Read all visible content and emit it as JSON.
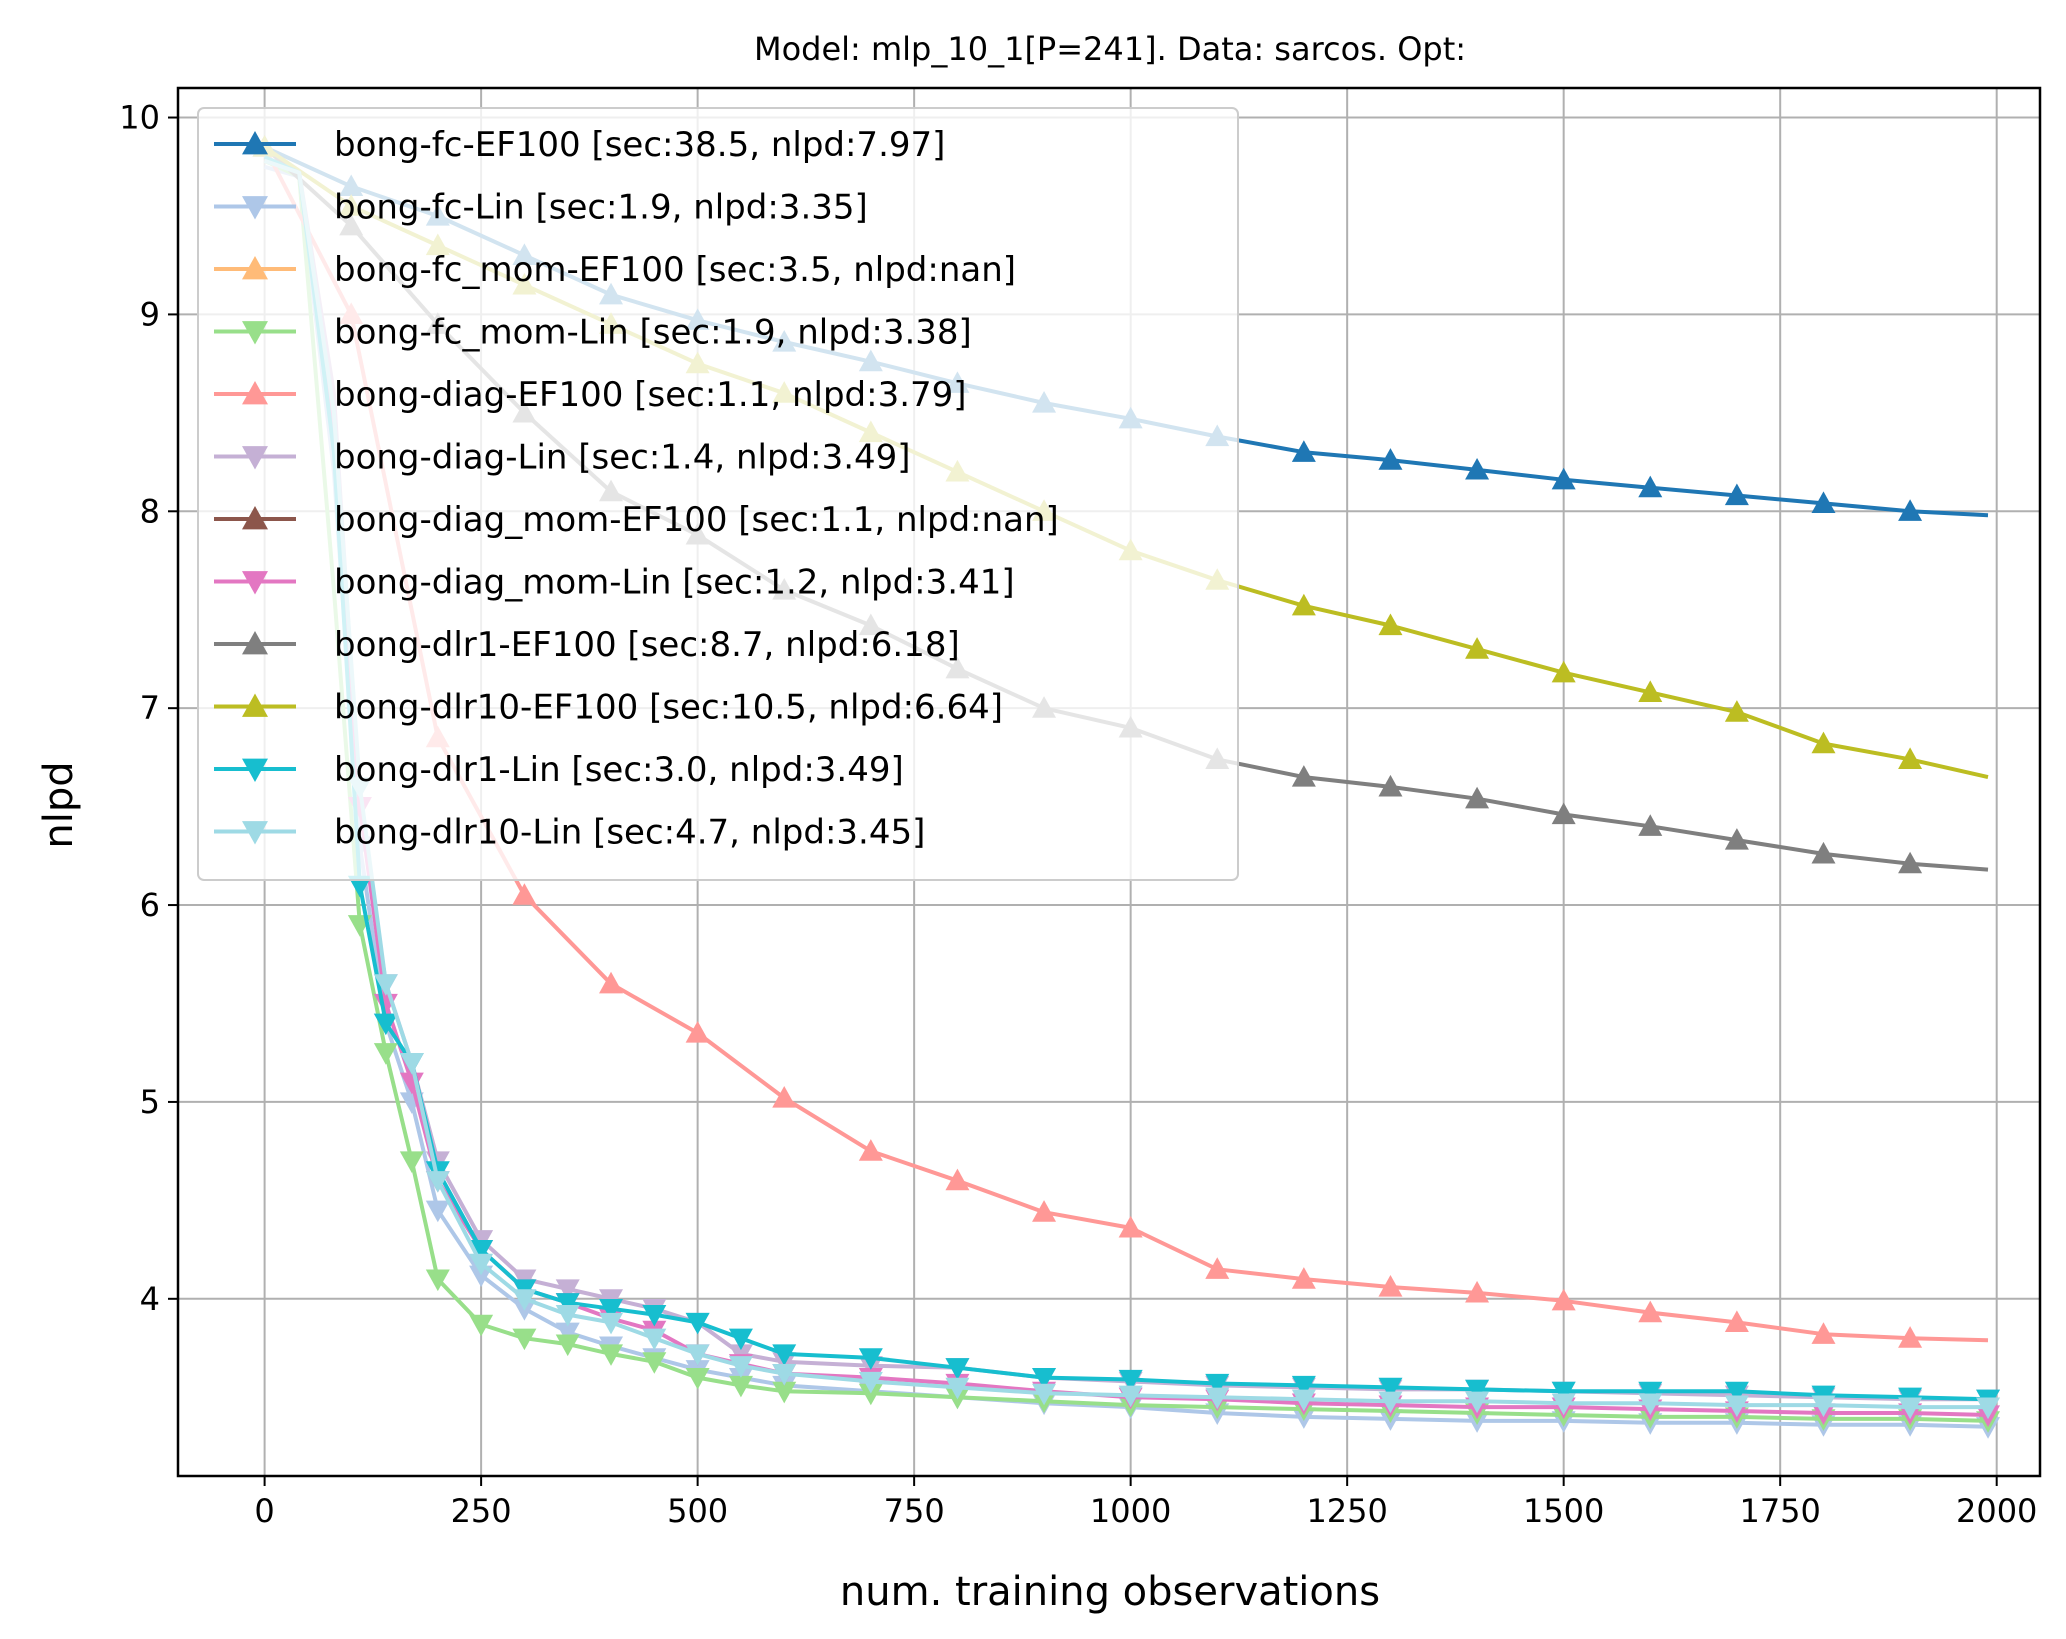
{
  "chart_data": {
    "type": "line",
    "title": "Model: mlp_10_1[P=241]. Data: sarcos. Opt:",
    "xlabel": "num. training observations",
    "ylabel": "nlpd",
    "xlim": [
      -100,
      2050
    ],
    "ylim": [
      3.1,
      10.15
    ],
    "xticks": [
      0,
      250,
      500,
      750,
      1000,
      1250,
      1500,
      1750,
      2000
    ],
    "yticks": [
      4,
      5,
      6,
      7,
      8,
      9,
      10
    ],
    "grid": true,
    "legend_position": "upper-left",
    "series": [
      {
        "name": "bong-fc-EF100 [sec:38.5, nlpd:7.97]",
        "color": "#1f77b4",
        "marker": "triangle-up",
        "x": [
          0,
          100,
          200,
          300,
          400,
          500,
          600,
          700,
          800,
          900,
          1000,
          1100,
          1200,
          1300,
          1400,
          1500,
          1600,
          1700,
          1800,
          1900,
          1990
        ],
        "y": [
          9.85,
          9.65,
          9.5,
          9.3,
          9.1,
          8.97,
          8.86,
          8.76,
          8.65,
          8.55,
          8.47,
          8.38,
          8.3,
          8.26,
          8.21,
          8.16,
          8.12,
          8.08,
          8.04,
          8.0,
          7.98
        ]
      },
      {
        "name": "bong-fc-Lin [sec:1.9, nlpd:3.35]",
        "color": "#aec7e8",
        "marker": "triangle-down",
        "x": [
          0,
          40,
          80,
          110,
          140,
          170,
          200,
          250,
          300,
          350,
          400,
          450,
          500,
          550,
          600,
          700,
          800,
          900,
          1000,
          1100,
          1200,
          1300,
          1400,
          1500,
          1600,
          1700,
          1800,
          1900,
          1990
        ],
        "y": [
          9.75,
          9.7,
          8.2,
          6.3,
          5.4,
          5.0,
          4.45,
          4.12,
          3.95,
          3.83,
          3.76,
          3.7,
          3.64,
          3.6,
          3.56,
          3.53,
          3.5,
          3.47,
          3.45,
          3.42,
          3.4,
          3.39,
          3.38,
          3.38,
          3.37,
          3.37,
          3.36,
          3.36,
          3.35
        ]
      },
      {
        "name": "bong-fc_mom-EF100 [sec:3.5, nlpd:nan]",
        "color": "#ffbb78",
        "marker": "triangle-up",
        "x": [],
        "y": []
      },
      {
        "name": "bong-fc_mom-Lin [sec:1.9, nlpd:3.38]",
        "color": "#98df8a",
        "marker": "triangle-down",
        "x": [
          0,
          40,
          80,
          110,
          140,
          170,
          200,
          250,
          300,
          350,
          400,
          450,
          500,
          550,
          600,
          700,
          800,
          900,
          1000,
          1100,
          1200,
          1300,
          1400,
          1500,
          1600,
          1700,
          1800,
          1900,
          1990
        ],
        "y": [
          9.78,
          9.7,
          7.6,
          5.9,
          5.25,
          4.7,
          4.1,
          3.87,
          3.8,
          3.77,
          3.72,
          3.68,
          3.6,
          3.56,
          3.53,
          3.52,
          3.5,
          3.48,
          3.46,
          3.45,
          3.44,
          3.43,
          3.42,
          3.41,
          3.4,
          3.4,
          3.39,
          3.39,
          3.38
        ]
      },
      {
        "name": "bong-diag-EF100 [sec:1.1, nlpd:3.79]",
        "color": "#ff9896",
        "marker": "triangle-up",
        "x": [
          0,
          100,
          200,
          300,
          400,
          500,
          600,
          700,
          800,
          900,
          1000,
          1100,
          1200,
          1300,
          1400,
          1500,
          1600,
          1700,
          1800,
          1900,
          1990
        ],
        "y": [
          9.85,
          9.0,
          6.85,
          6.05,
          5.6,
          5.35,
          5.02,
          4.75,
          4.6,
          4.44,
          4.36,
          4.15,
          4.1,
          4.06,
          4.03,
          3.99,
          3.93,
          3.88,
          3.82,
          3.8,
          3.79
        ]
      },
      {
        "name": "bong-diag-Lin [sec:1.4, nlpd:3.49]",
        "color": "#c5b0d5",
        "marker": "triangle-down",
        "x": [
          0,
          40,
          80,
          110,
          140,
          170,
          200,
          250,
          300,
          350,
          400,
          450,
          500,
          550,
          600,
          700,
          800,
          900,
          1000,
          1100,
          1200,
          1300,
          1400,
          1500,
          1600,
          1700,
          1800,
          1900,
          1990
        ],
        "y": [
          9.8,
          9.72,
          8.6,
          6.5,
          5.6,
          5.2,
          4.7,
          4.3,
          4.1,
          4.05,
          4.0,
          3.95,
          3.88,
          3.72,
          3.68,
          3.66,
          3.65,
          3.6,
          3.58,
          3.56,
          3.55,
          3.54,
          3.54,
          3.53,
          3.52,
          3.51,
          3.5,
          3.49,
          3.49
        ]
      },
      {
        "name": "bong-diag_mom-EF100 [sec:1.1, nlpd:nan]",
        "color": "#8c564b",
        "marker": "triangle-up",
        "x": [],
        "y": []
      },
      {
        "name": "bong-diag_mom-Lin [sec:1.2, nlpd:3.41]",
        "color": "#e377c2",
        "marker": "triangle-down",
        "x": [
          0,
          40,
          80,
          110,
          140,
          170,
          200,
          250,
          300,
          350,
          400,
          450,
          500,
          550,
          600,
          700,
          800,
          900,
          1000,
          1100,
          1200,
          1300,
          1400,
          1500,
          1600,
          1700,
          1800,
          1900,
          1990
        ],
        "y": [
          9.8,
          9.72,
          8.4,
          6.5,
          5.5,
          5.1,
          4.6,
          4.25,
          4.05,
          3.98,
          3.9,
          3.84,
          3.72,
          3.67,
          3.62,
          3.6,
          3.57,
          3.53,
          3.5,
          3.49,
          3.47,
          3.46,
          3.45,
          3.45,
          3.44,
          3.43,
          3.42,
          3.42,
          3.41
        ]
      },
      {
        "name": "bong-dlr1-EF100 [sec:8.7, nlpd:6.18]",
        "color": "#7f7f7f",
        "marker": "triangle-up",
        "x": [
          0,
          100,
          200,
          300,
          400,
          500,
          600,
          700,
          800,
          900,
          1000,
          1100,
          1200,
          1300,
          1400,
          1500,
          1600,
          1700,
          1800,
          1900,
          1990
        ],
        "y": [
          9.85,
          9.45,
          8.95,
          8.5,
          8.1,
          7.88,
          7.6,
          7.42,
          7.2,
          7.0,
          6.9,
          6.74,
          6.65,
          6.6,
          6.54,
          6.46,
          6.4,
          6.33,
          6.26,
          6.21,
          6.18
        ]
      },
      {
        "name": "bong-dlr10-EF100 [sec:10.5, nlpd:6.64]",
        "color": "#bcbd22",
        "marker": "triangle-up",
        "x": [
          0,
          100,
          200,
          300,
          400,
          500,
          600,
          700,
          800,
          900,
          1000,
          1100,
          1200,
          1300,
          1400,
          1500,
          1600,
          1700,
          1800,
          1900,
          1990
        ],
        "y": [
          9.85,
          9.55,
          9.35,
          9.15,
          8.95,
          8.75,
          8.6,
          8.4,
          8.2,
          8.0,
          7.8,
          7.65,
          7.52,
          7.42,
          7.3,
          7.18,
          7.08,
          6.98,
          6.82,
          6.74,
          6.65
        ]
      },
      {
        "name": "bong-dlr1-Lin [sec:3.0, nlpd:3.49]",
        "color": "#17becf",
        "marker": "triangle-down",
        "x": [
          0,
          40,
          80,
          110,
          140,
          170,
          200,
          250,
          300,
          350,
          400,
          450,
          500,
          550,
          600,
          700,
          800,
          900,
          1000,
          1100,
          1200,
          1300,
          1400,
          1500,
          1600,
          1700,
          1800,
          1900,
          1990
        ],
        "y": [
          9.8,
          9.72,
          8.3,
          6.1,
          5.4,
          5.2,
          4.65,
          4.25,
          4.05,
          3.98,
          3.95,
          3.92,
          3.88,
          3.8,
          3.72,
          3.7,
          3.65,
          3.6,
          3.59,
          3.57,
          3.56,
          3.55,
          3.54,
          3.53,
          3.53,
          3.53,
          3.51,
          3.5,
          3.49
        ]
      },
      {
        "name": "bong-dlr10-Lin [sec:4.7, nlpd:3.45]",
        "color": "#9edae5",
        "marker": "triangle-down",
        "x": [
          0,
          40,
          80,
          110,
          140,
          170,
          200,
          250,
          300,
          350,
          400,
          450,
          500,
          550,
          600,
          700,
          800,
          900,
          1000,
          1100,
          1200,
          1300,
          1400,
          1500,
          1600,
          1700,
          1800,
          1900,
          1990
        ],
        "y": [
          9.78,
          9.72,
          8.5,
          6.6,
          5.6,
          5.2,
          4.6,
          4.18,
          4.0,
          3.92,
          3.88,
          3.8,
          3.72,
          3.66,
          3.62,
          3.58,
          3.55,
          3.52,
          3.51,
          3.5,
          3.49,
          3.48,
          3.48,
          3.47,
          3.47,
          3.46,
          3.46,
          3.45,
          3.45
        ]
      }
    ]
  }
}
